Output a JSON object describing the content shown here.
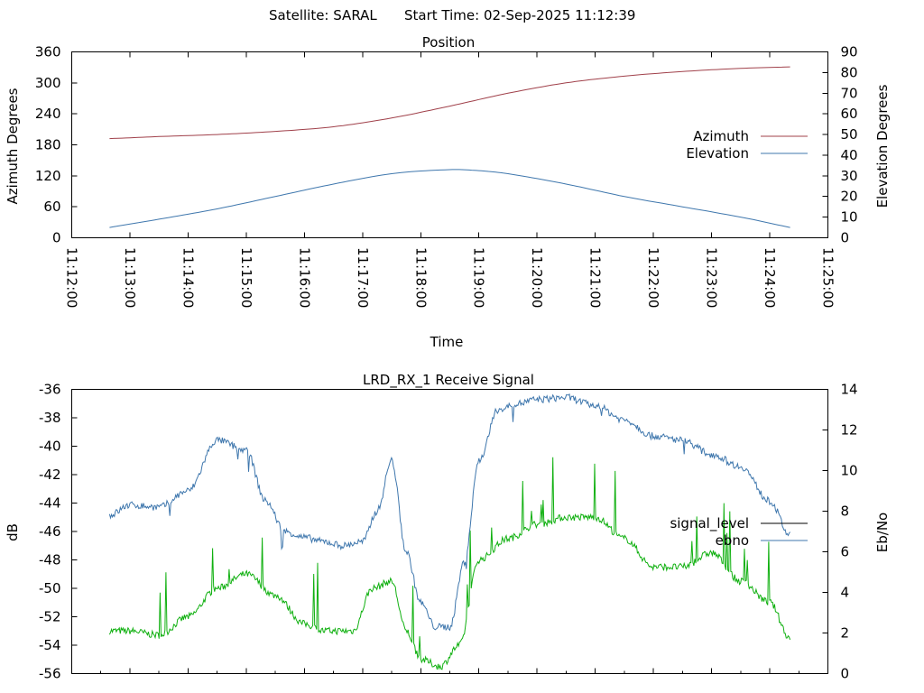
{
  "header": {
    "satellite_text": "Satellite: SARAL",
    "start_time_text": "Start Time: 02-Sep-2025 11:12:39"
  },
  "colors": {
    "azimuth": "#a0404a",
    "elevation": "#3f77ad",
    "signal_level": "#10b010",
    "ebno": "#3f77ad",
    "legend_signal_level": "#000000"
  },
  "chart_data": [
    {
      "type": "line",
      "title": "Position",
      "xlabel": "Time",
      "ylabel": "Azimuth Degrees",
      "y2label": "Elevation Degrees",
      "x_ticks": [
        "11:12:00",
        "11:13:00",
        "11:14:00",
        "11:15:00",
        "11:16:00",
        "11:17:00",
        "11:18:00",
        "11:19:00",
        "11:20:00",
        "11:21:00",
        "11:22:00",
        "11:23:00",
        "11:24:00",
        "11:25:00"
      ],
      "y_ticks": [
        "0",
        "60",
        "120",
        "180",
        "240",
        "300",
        "360"
      ],
      "y2_ticks": [
        "0",
        "10",
        "20",
        "30",
        "40",
        "50",
        "60",
        "70",
        "80",
        "90"
      ],
      "ylim": [
        0,
        360
      ],
      "y2lim": [
        0,
        90
      ],
      "xlim_minutes": [
        0,
        13
      ],
      "legend_position": "right",
      "series": [
        {
          "name": "Azimuth",
          "axis": "y",
          "x": [
            "11:12:39",
            "11:13:30",
            "11:14:30",
            "11:15:30",
            "11:16:30",
            "11:17:30",
            "11:18:30",
            "11:19:30",
            "11:20:30",
            "11:21:30",
            "11:22:30",
            "11:23:30",
            "11:24:21"
          ],
          "values": [
            192,
            196,
            200,
            206,
            215,
            232,
            255,
            280,
            300,
            313,
            322,
            328,
            331
          ]
        },
        {
          "name": "Elevation",
          "axis": "y2",
          "x": [
            "11:12:39",
            "11:13:30",
            "11:14:30",
            "11:15:30",
            "11:16:30",
            "11:17:30",
            "11:18:30",
            "11:19:00",
            "11:19:30",
            "11:20:30",
            "11:21:30",
            "11:22:30",
            "11:23:30",
            "11:24:21"
          ],
          "values": [
            5,
            9,
            14,
            20,
            26,
            31,
            33,
            32.5,
            31,
            26,
            20,
            15,
            10,
            5
          ]
        }
      ]
    },
    {
      "type": "line",
      "title": "LRD_RX_1 Receive Signal",
      "ylabel": "dB",
      "y2label": "Eb/No",
      "y_ticks": [
        "-56",
        "-54",
        "-52",
        "-50",
        "-48",
        "-46",
        "-44",
        "-42",
        "-40",
        "-38",
        "-36"
      ],
      "y2_ticks": [
        "0",
        "2",
        "4",
        "6",
        "8",
        "10",
        "12",
        "14"
      ],
      "ylim": [
        -56,
        -36
      ],
      "y2lim": [
        0,
        14
      ],
      "xlim_minutes": [
        0,
        13
      ],
      "legend_position": "right",
      "series": [
        {
          "name": "signal_level",
          "axis": "y",
          "x": [
            "11:12:39",
            "11:13:00",
            "11:13:30",
            "11:14:00",
            "11:14:30",
            "11:15:00",
            "11:15:30",
            "11:16:00",
            "11:16:20",
            "11:16:50",
            "11:17:10",
            "11:17:30",
            "11:17:45",
            "11:18:00",
            "11:18:20",
            "11:18:40",
            "11:19:00",
            "11:19:30",
            "11:20:00",
            "11:20:30",
            "11:21:00",
            "11:21:30",
            "11:22:00",
            "11:22:30",
            "11:23:00",
            "11:23:30",
            "11:24:00",
            "11:24:21"
          ],
          "values": [
            -53,
            -53,
            -53.3,
            -52,
            -50,
            -49,
            -50.5,
            -52.5,
            -53,
            -53,
            -50,
            -49.5,
            -53,
            -55,
            -55.5,
            -54,
            -48,
            -46.5,
            -45.5,
            -45,
            -45,
            -46.5,
            -48.5,
            -48.5,
            -47.5,
            -49.5,
            -51,
            -53.5
          ]
        },
        {
          "name": "ebno",
          "axis": "y2",
          "x": [
            "11:12:39",
            "11:13:00",
            "11:13:30",
            "11:14:00",
            "11:14:30",
            "11:15:00",
            "11:15:20",
            "11:15:40",
            "11:16:00",
            "11:16:20",
            "11:16:40",
            "11:17:00",
            "11:17:15",
            "11:17:30",
            "11:17:45",
            "11:18:00",
            "11:18:15",
            "11:18:30",
            "11:18:45",
            "11:19:00",
            "11:19:20",
            "11:19:40",
            "11:20:00",
            "11:20:30",
            "11:21:00",
            "11:21:30",
            "11:22:00",
            "11:22:30",
            "11:23:00",
            "11:23:30",
            "11:24:00",
            "11:24:21"
          ],
          "values": [
            7.8,
            8.3,
            8.2,
            9.0,
            11.5,
            11.0,
            8.5,
            7.0,
            6.7,
            6.5,
            6.3,
            6.5,
            8.0,
            10.5,
            6.0,
            3.5,
            2.3,
            2.3,
            5.5,
            10.5,
            13.0,
            13.3,
            13.5,
            13.6,
            13.2,
            12.5,
            11.7,
            11.5,
            10.8,
            10.2,
            8.5,
            6.8
          ]
        }
      ]
    }
  ]
}
